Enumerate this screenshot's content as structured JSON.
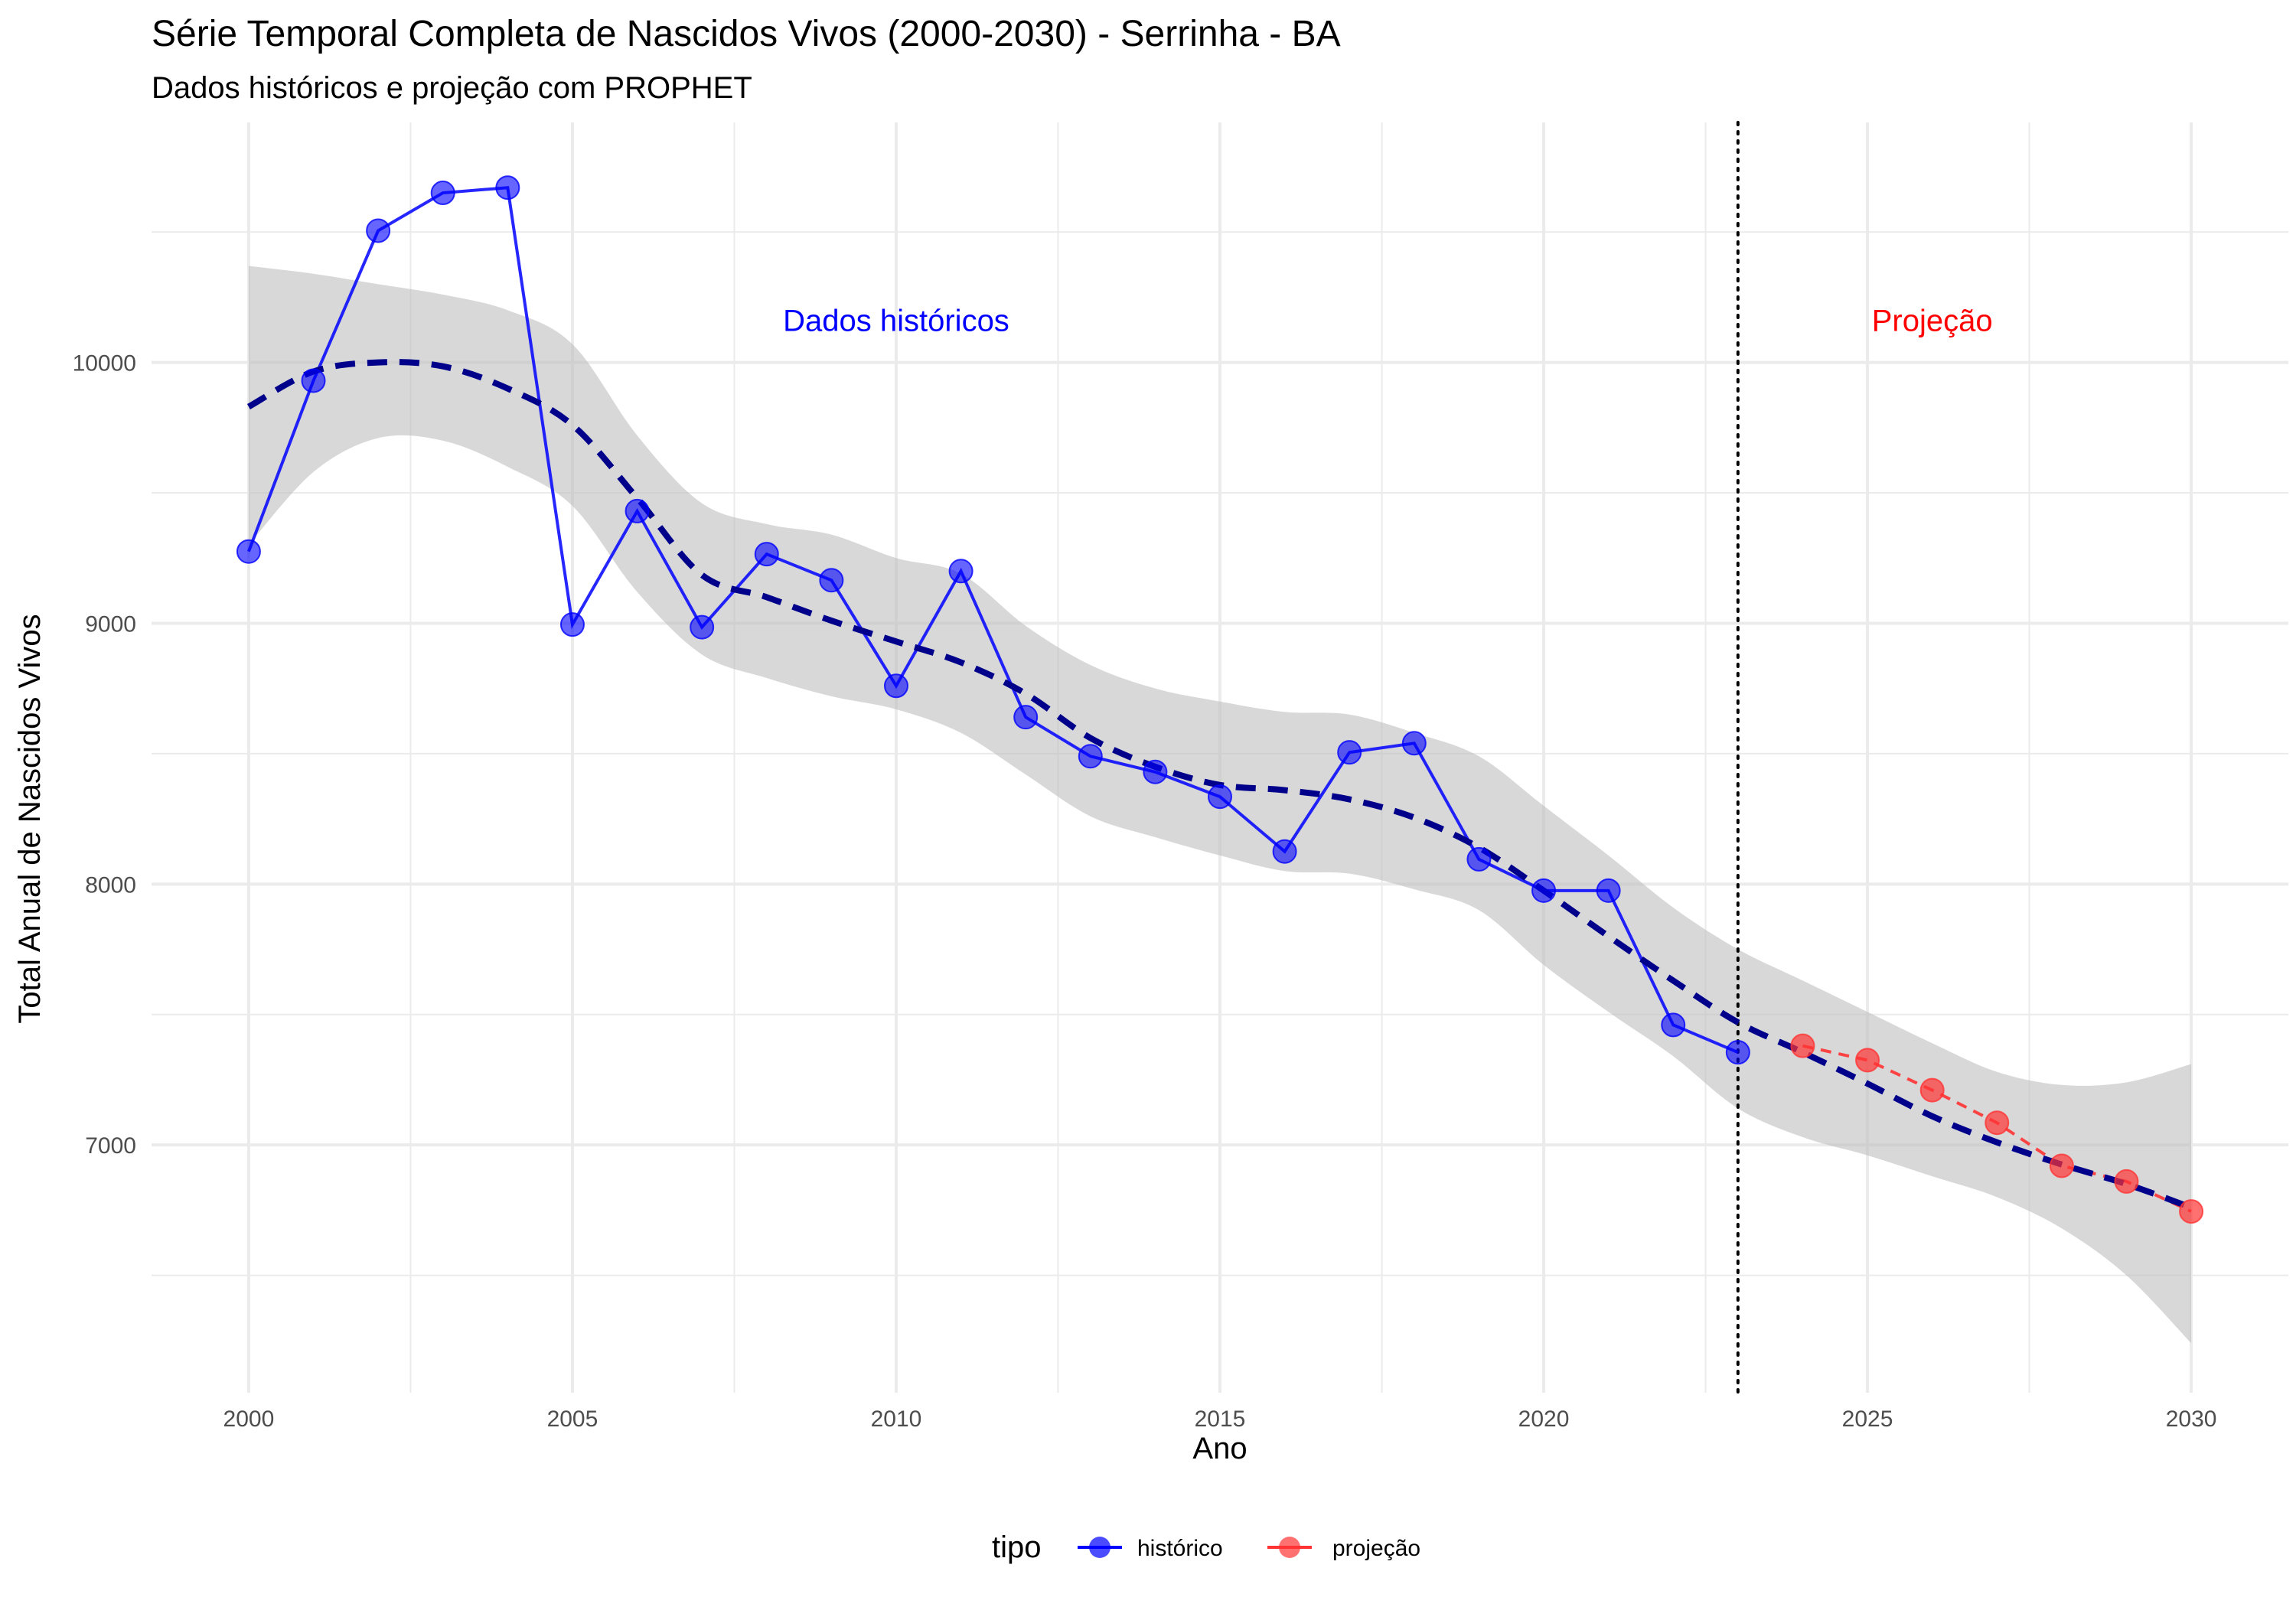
{
  "chart_data": {
    "type": "line",
    "title": "Série Temporal Completa de Nascidos Vivos (2000-2030) -  Serrinha - BA",
    "subtitle": "Dados históricos e projeção com PROPHET",
    "xlabel": "Ano",
    "ylabel": "Total Anual de Nascidos Vivos",
    "xlim": [
      1998.5,
      2031.5
    ],
    "ylim": [
      6050,
      10920
    ],
    "x_ticks": [
      2000,
      2005,
      2010,
      2015,
      2020,
      2025,
      2030
    ],
    "y_ticks": [
      7000,
      8000,
      9000,
      10000
    ],
    "grid": true,
    "cutoff_year": 2023,
    "colors": {
      "historico": "#0000FF",
      "projecao": "#FF3333",
      "trend": "#00008B",
      "band": "#BEBEBE",
      "grid": "#EBEBEB"
    },
    "annotations": [
      {
        "text": "Dados históricos",
        "x": 2010,
        "y": 10120,
        "color": "#0000FF"
      },
      {
        "text": "Projeção",
        "x": 2026,
        "y": 10120,
        "color": "#FF0000"
      }
    ],
    "legend": {
      "position": "bottom",
      "title": "tipo",
      "items": [
        {
          "label": "histórico",
          "color": "#0000FF"
        },
        {
          "label": "projeção",
          "color": "#FF3333"
        }
      ]
    },
    "series": [
      {
        "name": "histórico",
        "x": [
          2000,
          2001,
          2002,
          2003,
          2004,
          2005,
          2006,
          2007,
          2008,
          2009,
          2010,
          2011,
          2012,
          2013,
          2014,
          2015,
          2016,
          2017,
          2018,
          2019,
          2020,
          2021,
          2022,
          2023
        ],
        "y": [
          9275,
          9930,
          10505,
          10650,
          10670,
          8995,
          9430,
          8985,
          9265,
          9165,
          8760,
          9200,
          8640,
          8490,
          8430,
          8335,
          8125,
          8505,
          8540,
          8095,
          7975,
          7975,
          7460,
          7355
        ]
      },
      {
        "name": "projeção",
        "x": [
          2024,
          2025,
          2026,
          2027,
          2028,
          2029,
          2030
        ],
        "y": [
          7380,
          7325,
          7210,
          7085,
          6920,
          6860,
          6745
        ]
      }
    ],
    "trend": {
      "x": [
        2000,
        2001,
        2002,
        2003,
        2004,
        2005,
        2006,
        2007,
        2008,
        2009,
        2010,
        2011,
        2012,
        2013,
        2014,
        2015,
        2016,
        2017,
        2018,
        2019,
        2020,
        2021,
        2022,
        2023,
        2024,
        2025,
        2026,
        2027,
        2028,
        2029,
        2030
      ],
      "y": [
        9830,
        9965,
        10000,
        9985,
        9900,
        9760,
        9480,
        9185,
        9100,
        9010,
        8930,
        8850,
        8730,
        8560,
        8450,
        8380,
        8360,
        8325,
        8255,
        8140,
        7975,
        7800,
        7630,
        7470,
        7355,
        7235,
        7110,
        7010,
        6925,
        6850,
        6760
      ]
    },
    "band": {
      "x": [
        2000,
        2001,
        2002,
        2003,
        2004,
        2005,
        2006,
        2007,
        2008,
        2009,
        2010,
        2011,
        2012,
        2013,
        2014,
        2015,
        2016,
        2017,
        2018,
        2019,
        2020,
        2021,
        2022,
        2023,
        2024,
        2025,
        2026,
        2027,
        2028,
        2029,
        2030
      ],
      "upper": [
        10370,
        10340,
        10300,
        10260,
        10200,
        10070,
        9720,
        9460,
        9380,
        9340,
        9250,
        9190,
        8990,
        8840,
        8750,
        8700,
        8660,
        8650,
        8580,
        8490,
        8300,
        8110,
        7910,
        7750,
        7630,
        7510,
        7390,
        7280,
        7230,
        7240,
        7310
      ],
      "lower": [
        9300,
        9580,
        9710,
        9700,
        9600,
        9450,
        9120,
        8880,
        8790,
        8720,
        8670,
        8580,
        8420,
        8260,
        8180,
        8110,
        8050,
        8040,
        7980,
        7900,
        7690,
        7510,
        7340,
        7140,
        7030,
        6960,
        6880,
        6800,
        6680,
        6500,
        6240
      ]
    }
  }
}
